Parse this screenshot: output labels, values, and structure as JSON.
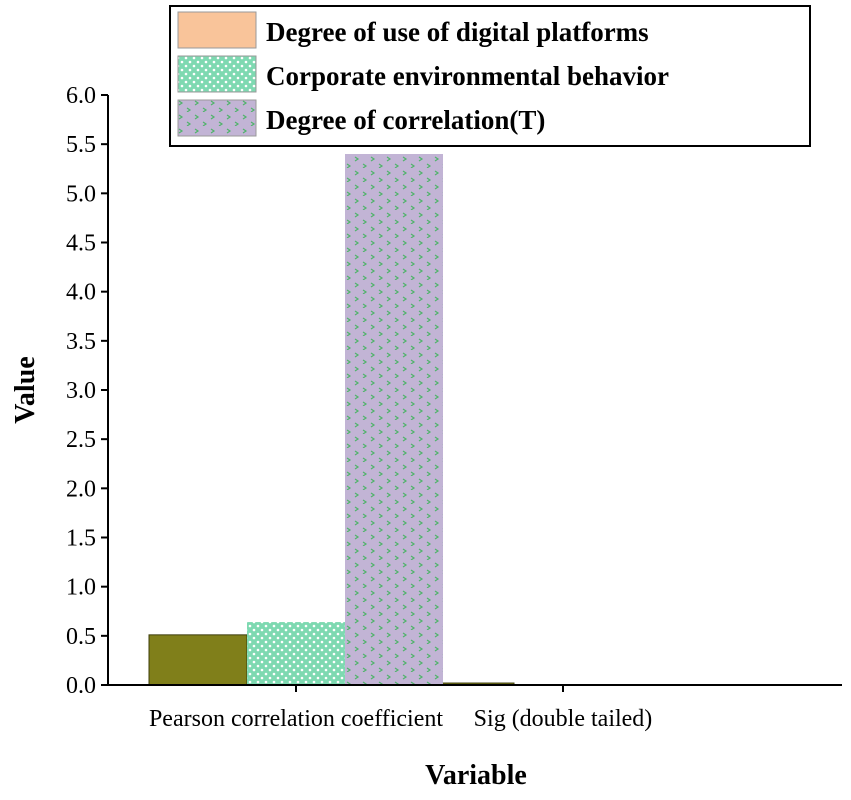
{
  "chart_data": {
    "type": "bar",
    "categories": [
      "Pearson correlation coefficient",
      "Sig (double tailed)"
    ],
    "series": [
      {
        "name": "Degree of use of digital platforms",
        "values": [
          0.51,
          0.02
        ],
        "color": "#807f1a",
        "legend_color": "#f9c49a",
        "pattern": "solid"
      },
      {
        "name": "Corporate environmental behavior",
        "values": [
          0.64,
          0.0
        ],
        "color": "#7ed9b1",
        "pattern": "dots"
      },
      {
        "name": "Degree of correlation(T)",
        "values": [
          5.4,
          0.0
        ],
        "color": "#c2b4d5",
        "pattern": "chevrons"
      }
    ],
    "xlabel": "Variable",
    "ylabel": "Value",
    "ylim": [
      0,
      6.0
    ],
    "yticks": [
      "0.0",
      "0.5",
      "1.0",
      "1.5",
      "2.0",
      "2.5",
      "3.0",
      "3.5",
      "4.0",
      "4.5",
      "5.0",
      "5.5",
      "6.0"
    ],
    "grid": false,
    "legend_position": "top-right"
  }
}
